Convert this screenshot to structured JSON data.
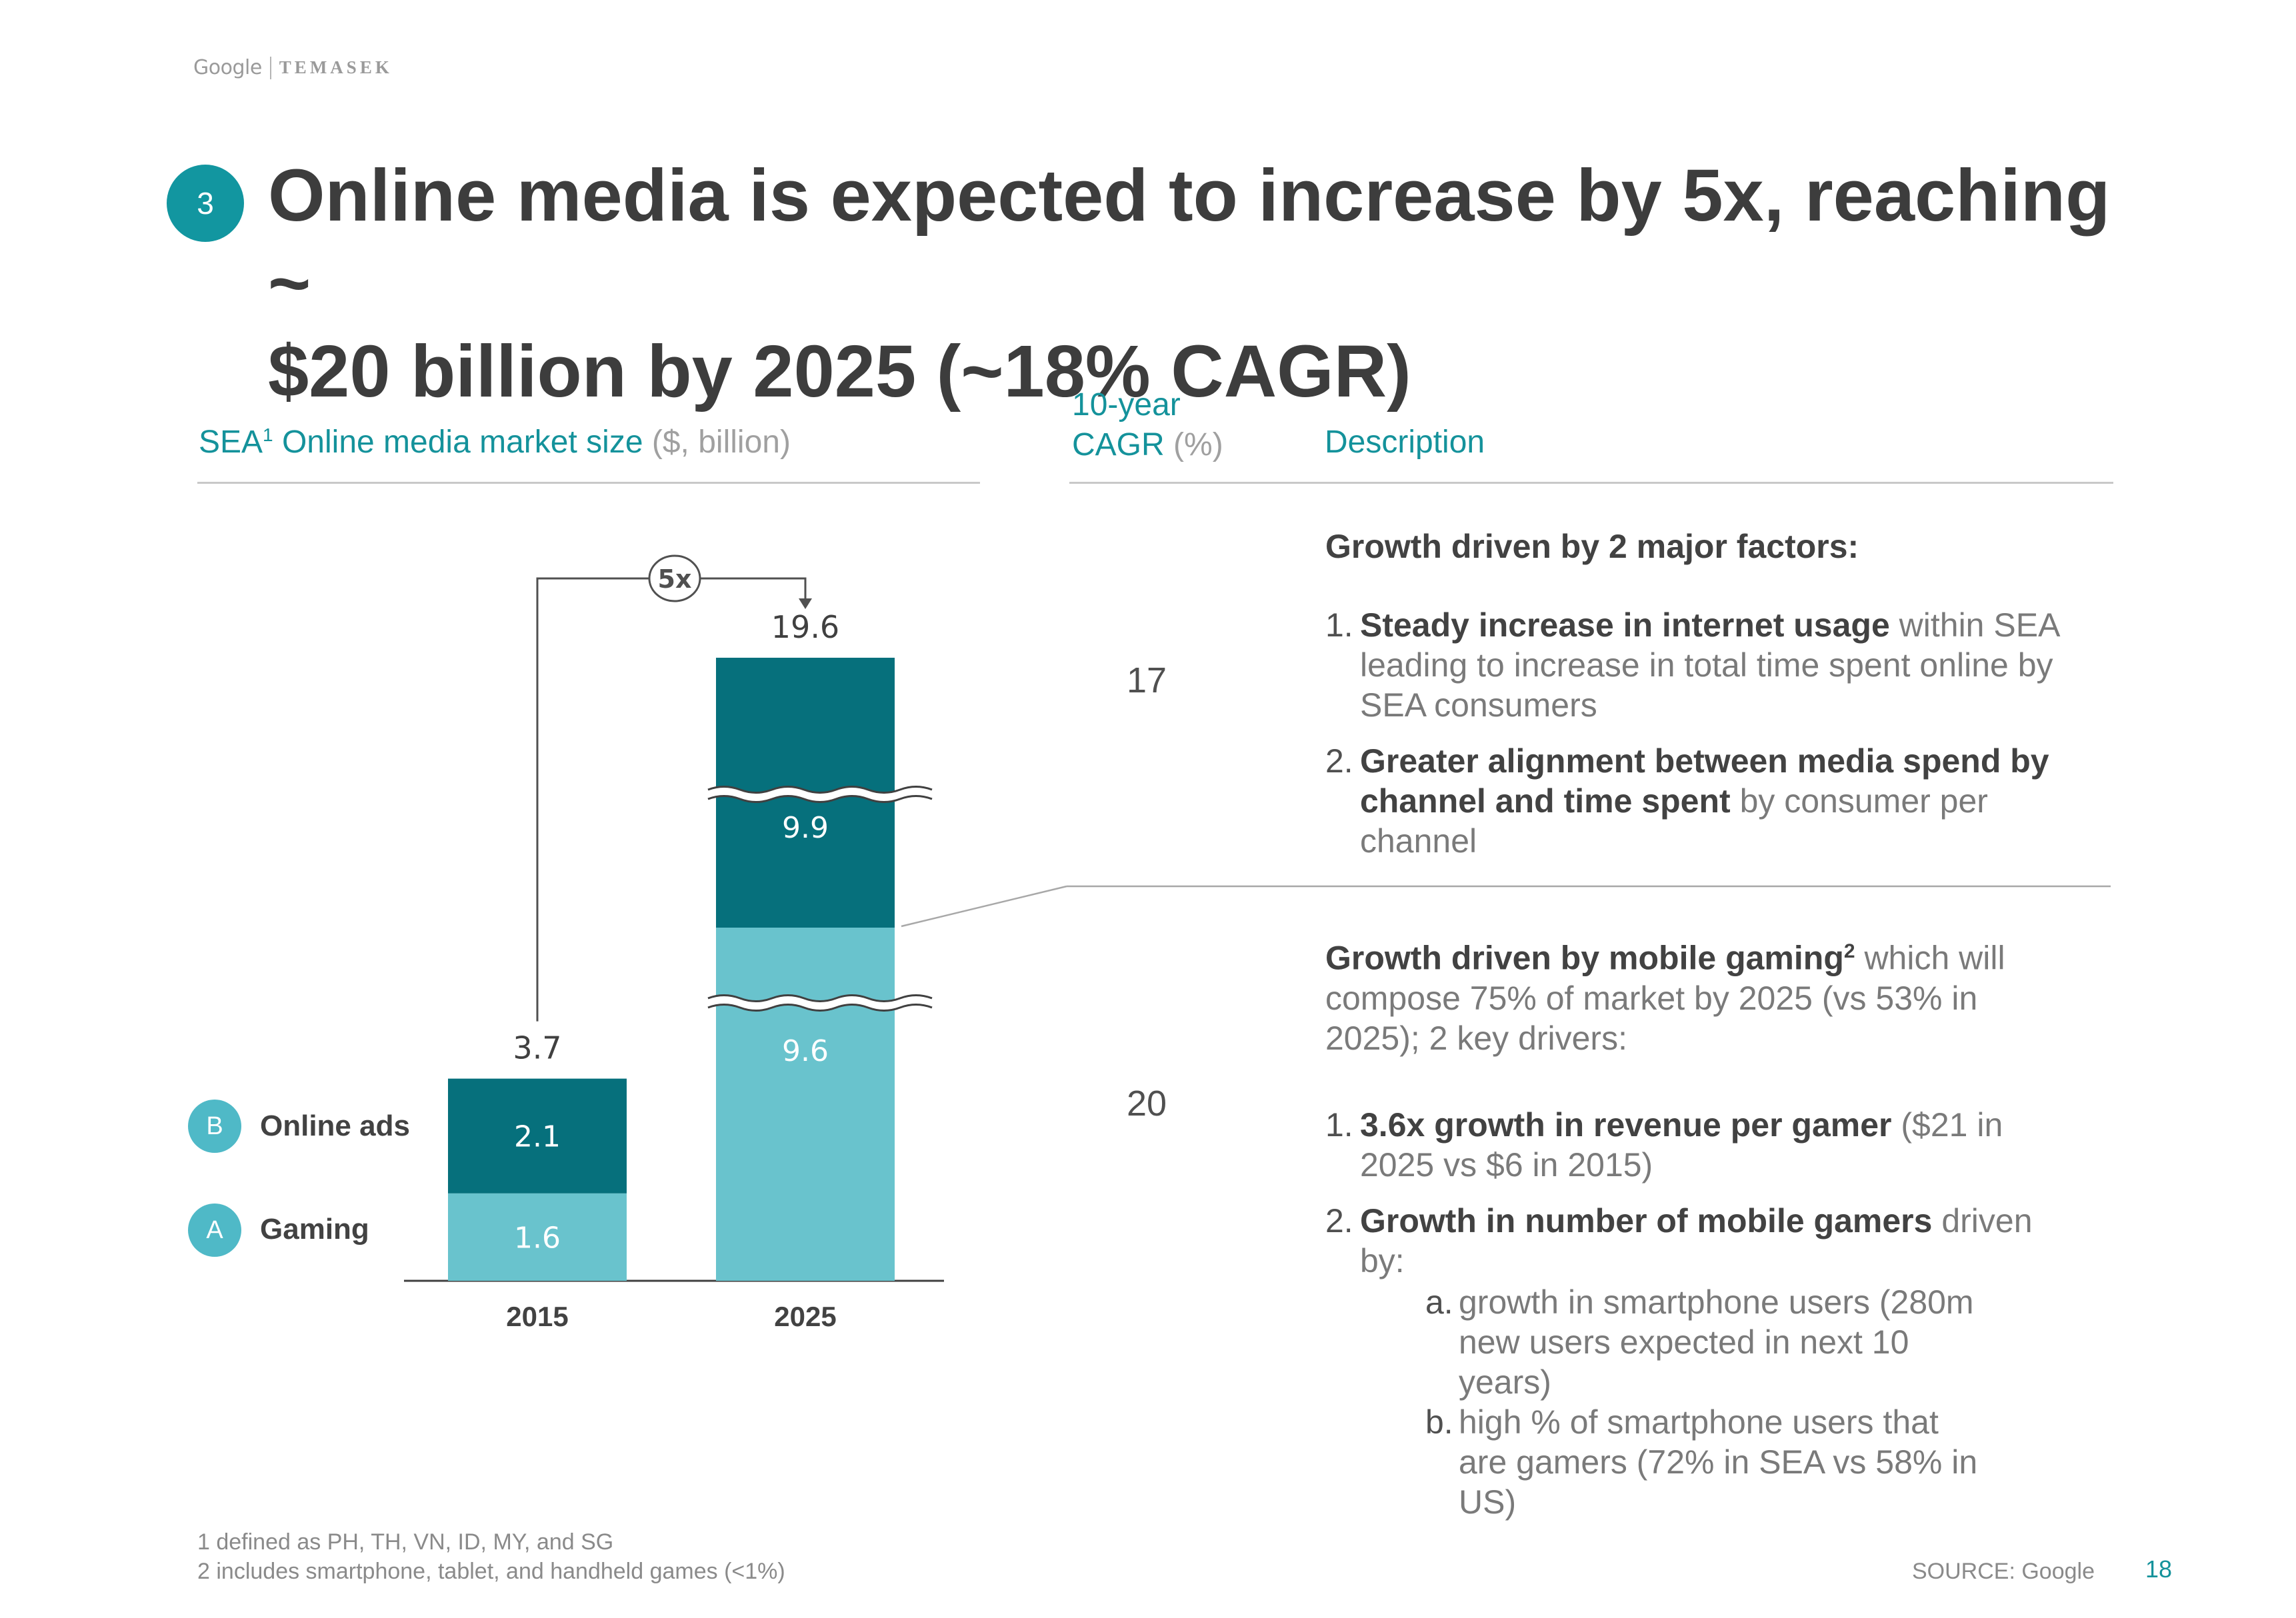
{
  "header": {
    "logo_google": "Google",
    "logo_temasek": "TEMASEK"
  },
  "section_number": "3",
  "title_line1": "Online media is expected to increase by 5x, reaching ~",
  "title_line2": "$20 billion by 2025 (~18% CAGR)",
  "columns": {
    "chart_header_sea": "SEA",
    "chart_header_sup": "1",
    "chart_header_main": "Online media market size",
    "chart_header_unit": "($, billion)",
    "cagr_header_line1": "10-year",
    "cagr_header_line2": "CAGR",
    "cagr_header_unit": "(%)",
    "description_header": "Description"
  },
  "legend": [
    {
      "letter": "B",
      "label": "Online ads"
    },
    {
      "letter": "A",
      "label": "Gaming"
    }
  ],
  "chart_data": {
    "type": "bar",
    "stacked": true,
    "title": "SEA Online media market size ($, billion)",
    "categories": [
      "2015",
      "2025"
    ],
    "series": [
      {
        "name": "Gaming",
        "values": [
          1.6,
          9.6
        ]
      },
      {
        "name": "Online ads",
        "values": [
          2.1,
          9.9
        ]
      }
    ],
    "totals": [
      3.7,
      19.6
    ],
    "multiplier_label": "5x",
    "axis_break": true
  },
  "cagr": {
    "online_ads": "17",
    "gaming": "20"
  },
  "desc_ads": {
    "heading": "Growth driven by 2 major factors:",
    "items": [
      {
        "n": "1.",
        "bold": "Steady increase in internet usage",
        "rest": " within SEA leading to increase in total time spent online by SEA consumers"
      },
      {
        "n": "2.",
        "bold": "Greater alignment between media spend by channel and time spent",
        "rest": " by consumer per channel"
      }
    ]
  },
  "desc_gaming": {
    "heading_bold": "Growth driven by mobile gaming",
    "heading_sup": "2",
    "heading_rest": " which will compose 75% of market by 2025 (vs 53% in 2025); 2 key drivers:",
    "items": [
      {
        "n": "1.",
        "bold": "3.6x growth in revenue per gamer",
        "rest": " ($21 in 2025 vs $6 in 2015)"
      },
      {
        "n": "2.",
        "bold": "Growth in number of mobile gamers",
        "rest": " driven by:"
      }
    ],
    "subitems": [
      {
        "n": "a.",
        "text": "growth in smartphone users (280m new users expected in next 10 years)"
      },
      {
        "n": "b.",
        "text": "high % of smartphone users that are gamers (72% in SEA vs 58% in US)"
      }
    ]
  },
  "footnotes": {
    "line1": "1 defined as PH, TH, VN, ID, MY, and SG",
    "line2": "2 includes smartphone, tablet, and handheld games (<1%)"
  },
  "source": "SOURCE: Google",
  "page_number": "18",
  "colors": {
    "accent": "#14929b",
    "dark_teal": "#06707c",
    "light_teal": "#69c3cd",
    "badge": "#4fb9c7"
  }
}
